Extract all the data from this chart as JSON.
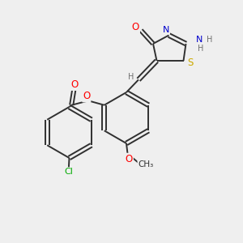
{
  "bg_color": "#efefef",
  "bond_color": "#303030",
  "atom_colors": {
    "O": "#ff0000",
    "N": "#0000cc",
    "S": "#ccaa00",
    "Cl": "#00aa00",
    "H": "#707070",
    "C": "#303030",
    "OMe_O": "#ff0000"
  },
  "figsize": [
    3.0,
    3.0
  ],
  "dpi": 100
}
